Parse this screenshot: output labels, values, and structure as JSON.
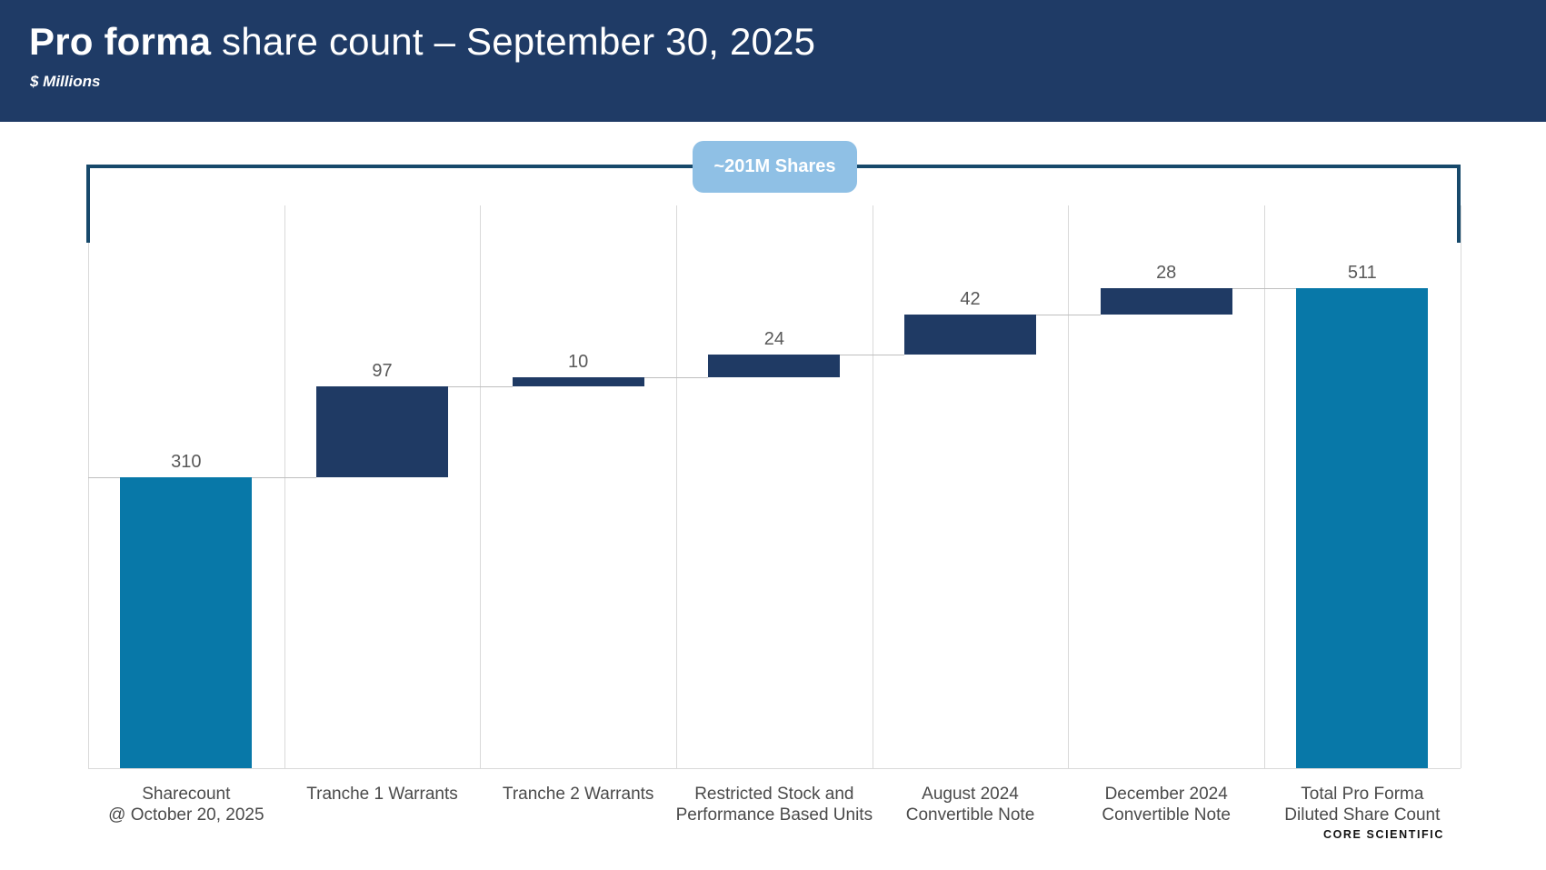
{
  "header": {
    "title_bold": "Pro forma",
    "title_rest": " share count – September 30, 2025",
    "subtitle": "$ Millions"
  },
  "annotation": {
    "badge_label": "~201M Shares",
    "note": "bracket spans all waterfall steps"
  },
  "footer": {
    "logo_text": "CORE SCIENTIFIC"
  },
  "colors": {
    "header_bg": "#1F3B66",
    "total_bar": "#0878A8",
    "delta_bar": "#1F3A64",
    "badge_bg": "#8FC0E5",
    "bracket": "#17496B",
    "gridline": "#D9D9D9",
    "connector": "#BFBFBF",
    "value_label": "#595959",
    "category_label": "#4A4A4A"
  },
  "chart_data": {
    "type": "bar",
    "subtype": "waterfall",
    "title": "Pro forma share count – September 30, 2025",
    "units_label": "$ Millions",
    "categories": [
      "Sharecount @ October 20, 2025",
      "Tranche 1 Warrants",
      "Tranche 2 Warrants",
      "Restricted Stock and Performance Based Units",
      "August 2024 Convertible Note",
      "December 2024 Convertible Note",
      "Total Pro Forma Diluted Share Count"
    ],
    "values": [
      310,
      97,
      10,
      24,
      42,
      28,
      511
    ],
    "cumulative": [
      310,
      407,
      417,
      441,
      483,
      511,
      511
    ],
    "ylim": [
      0,
      600
    ],
    "grid": "vertical category separators only",
    "legend": "none",
    "annotation": "~201M Shares (sum of dilutive steps, bracket above chart)",
    "bars": [
      {
        "label_lines": [
          "Sharecount",
          "@ October 20, 2025"
        ],
        "value": 310,
        "value_label": "310",
        "kind": "total"
      },
      {
        "label_lines": [
          "Tranche 1 Warrants"
        ],
        "value": 97,
        "value_label": "97",
        "kind": "delta"
      },
      {
        "label_lines": [
          "Tranche 2 Warrants"
        ],
        "value": 10,
        "value_label": "10",
        "kind": "delta"
      },
      {
        "label_lines": [
          "Restricted Stock and",
          "Performance Based Units"
        ],
        "value": 24,
        "value_label": "24",
        "kind": "delta"
      },
      {
        "label_lines": [
          "August 2024",
          "Convertible Note"
        ],
        "value": 42,
        "value_label": "42",
        "kind": "delta"
      },
      {
        "label_lines": [
          "December 2024",
          "Convertible Note"
        ],
        "value": 28,
        "value_label": "28",
        "kind": "delta"
      },
      {
        "label_lines": [
          "Total Pro Forma",
          "Diluted Share Count"
        ],
        "value": 511,
        "value_label": "511",
        "kind": "total"
      }
    ]
  }
}
